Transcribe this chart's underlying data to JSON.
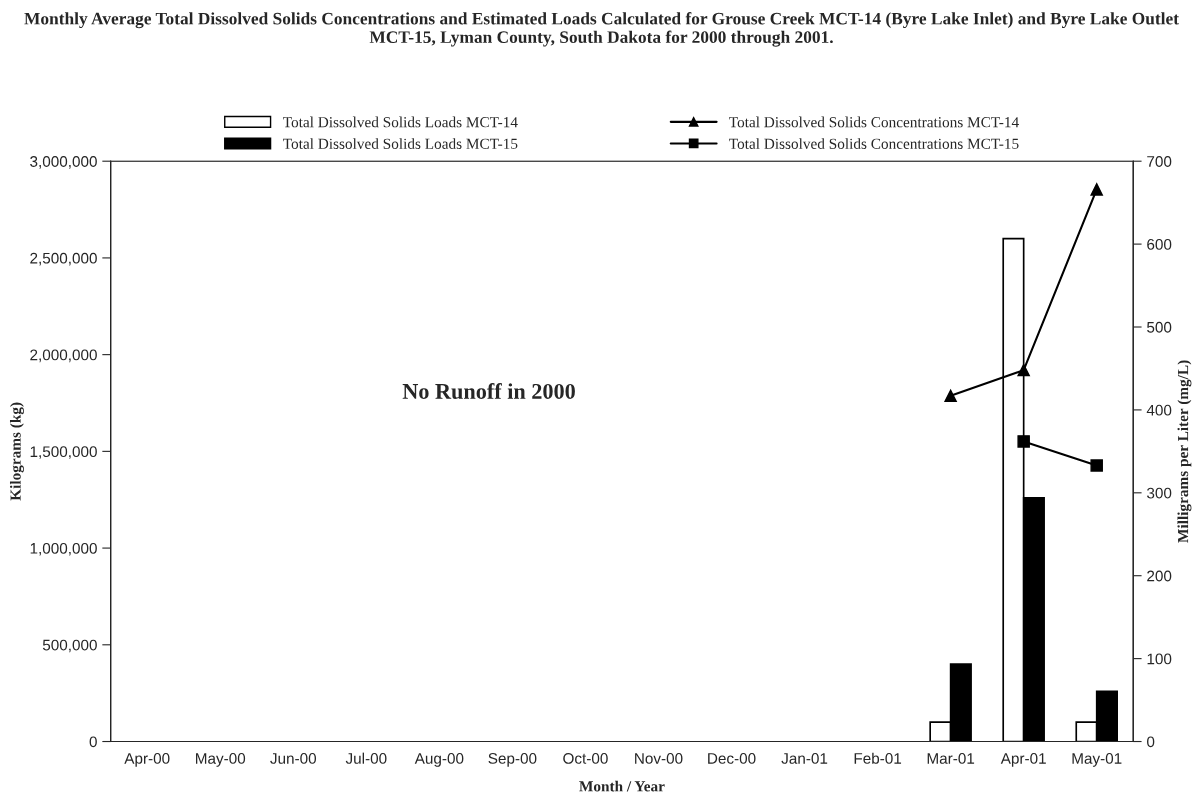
{
  "chart_data": {
    "type": "bar",
    "title": "Monthly Average Total Dissolved Solids Concentrations and Estimated Loads Calculated for Grouse Creek MCT-14 (Byre Lake Inlet) and Byre Lake Outlet MCT-15, Lyman County, South Dakota for 2000 through 2001.",
    "xlabel": "Month / Year",
    "ylabel": "Kilograms (kg)",
    "y2label": "Milligrams per Liter (mg/L)",
    "categories": [
      "Apr-00",
      "May-00",
      "Jun-00",
      "Jul-00",
      "Aug-00",
      "Sep-00",
      "Oct-00",
      "Nov-00",
      "Dec-00",
      "Jan-01",
      "Feb-01",
      "Mar-01",
      "Apr-01",
      "May-01"
    ],
    "series": [
      {
        "name": "Total Dissolved Solids Loads MCT-14",
        "color": "#ffffff",
        "values": [
          null,
          null,
          null,
          null,
          null,
          null,
          null,
          null,
          null,
          null,
          null,
          100000,
          2600000,
          100000
        ]
      },
      {
        "name": "Total Dissolved Solids Loads MCT-15",
        "color": "#000000",
        "values": [
          null,
          null,
          null,
          null,
          null,
          null,
          null,
          null,
          null,
          null,
          null,
          400000,
          1260000,
          260000
        ]
      },
      {
        "name": "Total Dissolved Solids Concentrations MCT-14",
        "type": "line",
        "axis": "y2",
        "marker": "triangle",
        "color": "#000000",
        "values": [
          null,
          null,
          null,
          null,
          null,
          null,
          null,
          null,
          null,
          null,
          null,
          417,
          448,
          666
        ]
      },
      {
        "name": "Total Dissolved Solids Concentrations MCT-15",
        "type": "line",
        "axis": "y2",
        "marker": "square",
        "color": "#000000",
        "values": [
          null,
          null,
          null,
          null,
          null,
          null,
          null,
          null,
          null,
          null,
          null,
          null,
          362,
          333
        ]
      }
    ],
    "ylim": [
      0,
      3000000
    ],
    "yticks": [
      0,
      {
        "value": 500000,
        "label": "500,000"
      },
      {
        "value": 1000000,
        "label": "1,000,000"
      },
      {
        "value": 1500000,
        "label": "1,500,000"
      },
      {
        "value": 2000000,
        "label": "2,000,000"
      },
      {
        "value": 2500000,
        "label": "2,500,000"
      },
      {
        "value": 3000000,
        "label": "3,000,000"
      }
    ],
    "y2lim": [
      0,
      700
    ],
    "y2ticks": [
      0,
      100,
      200,
      300,
      400,
      500,
      600,
      700
    ],
    "annotations": [
      "No Runoff in 2000"
    ],
    "legend": "top",
    "grid": false
  }
}
